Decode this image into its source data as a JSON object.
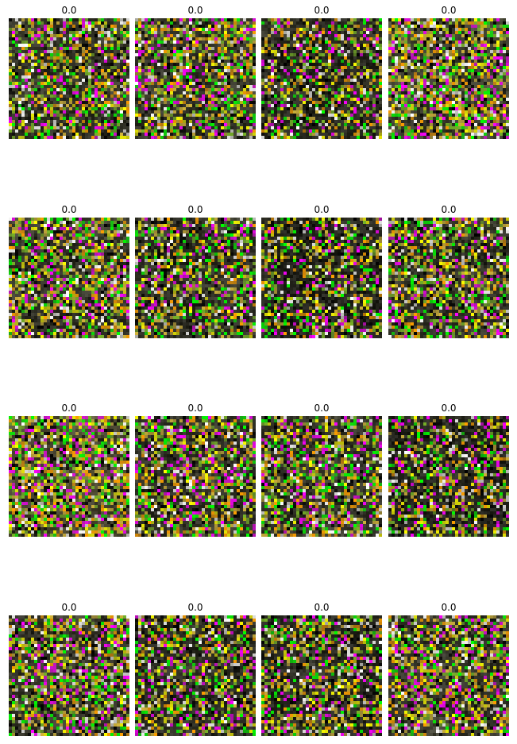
{
  "tiles": [
    {
      "title": "0.0",
      "bg": "#3d3d2f",
      "noise": 0.55,
      "seed": 11
    },
    {
      "title": "0.0",
      "bg": "#404032",
      "noise": 0.6,
      "seed": 27
    },
    {
      "title": "0.0",
      "bg": "#313126",
      "noise": 0.5,
      "seed": 43
    },
    {
      "title": "0.0",
      "bg": "#494938",
      "noise": 0.7,
      "seed": 59
    },
    {
      "title": "0.0",
      "bg": "#3f3f31",
      "noise": 0.62,
      "seed": 75
    },
    {
      "title": "0.0",
      "bg": "#39392d",
      "noise": 0.56,
      "seed": 91
    },
    {
      "title": "0.0",
      "bg": "#2b2b22",
      "noise": 0.5,
      "seed": 107
    },
    {
      "title": "0.0",
      "bg": "#3b3b2e",
      "noise": 0.58,
      "seed": 123
    },
    {
      "title": "0.0",
      "bg": "#57533a",
      "noise": 0.72,
      "seed": 139
    },
    {
      "title": "0.0",
      "bg": "#3c3c2f",
      "noise": 0.6,
      "seed": 155
    },
    {
      "title": "0.0",
      "bg": "#3d3d30",
      "noise": 0.62,
      "seed": 171
    },
    {
      "title": "0.0",
      "bg": "#2c2c23",
      "noise": 0.46,
      "seed": 187
    },
    {
      "title": "0.0",
      "bg": "#403f31",
      "noise": 0.63,
      "seed": 203
    },
    {
      "title": "0.0",
      "bg": "#343429",
      "noise": 0.55,
      "seed": 219
    },
    {
      "title": "0.0",
      "bg": "#333329",
      "noise": 0.55,
      "seed": 235
    },
    {
      "title": "0.0",
      "bg": "#3e3e31",
      "noise": 0.62,
      "seed": 251
    }
  ]
}
